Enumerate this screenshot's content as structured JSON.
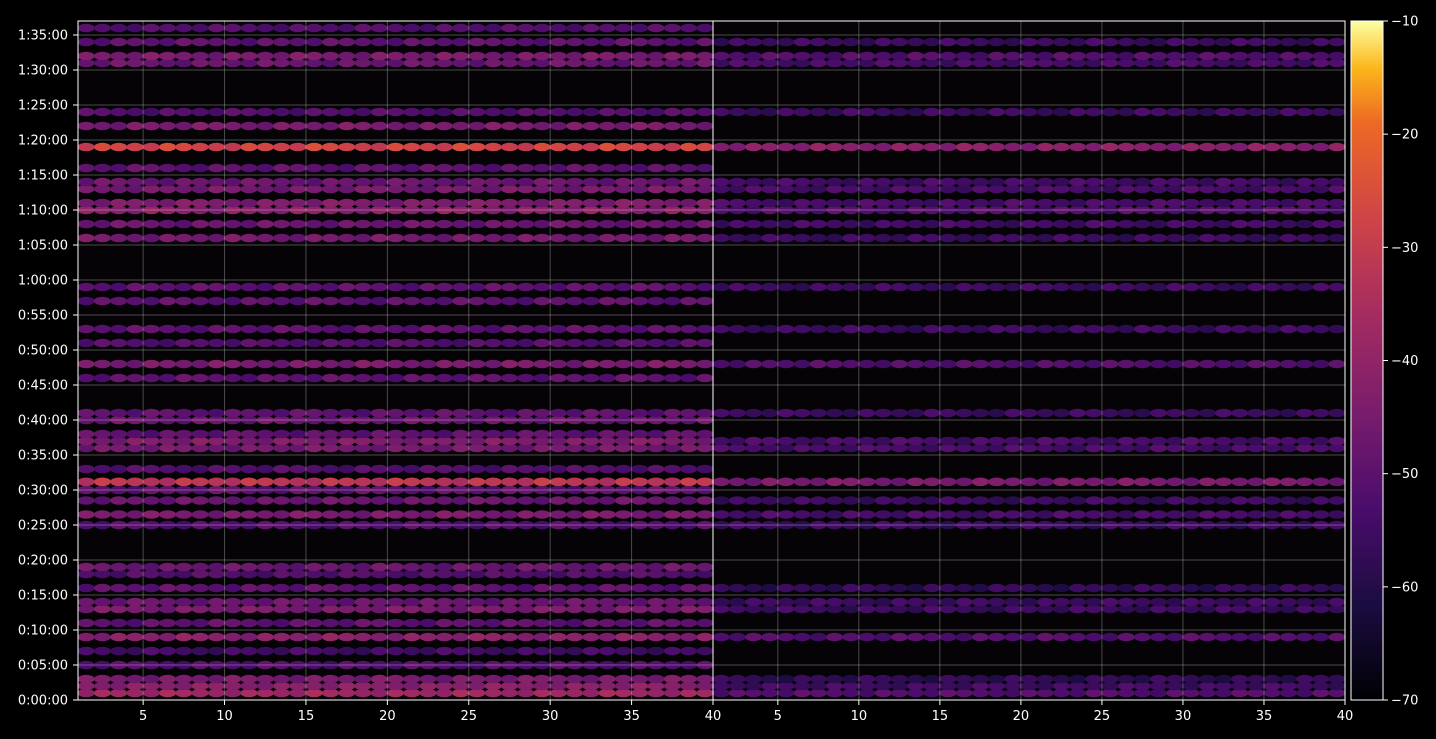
{
  "chart_data": [
    {
      "type": "heatmap",
      "panel": "left",
      "xlabel": "",
      "ylabel": "",
      "xlim": [
        1,
        40
      ],
      "x_ticks": [
        5,
        10,
        15,
        20,
        25,
        30,
        35,
        40
      ],
      "ylim_seconds": [
        0,
        5820
      ],
      "y_ticks": [
        "0:00:00",
        "0:05:00",
        "0:10:00",
        "0:15:00",
        "0:20:00",
        "0:25:00",
        "0:30:00",
        "0:35:00",
        "0:40:00",
        "0:45:00",
        "0:50:00",
        "0:55:00",
        "1:00:00",
        "1:05:00",
        "1:10:00",
        "1:15:00",
        "1:20:00",
        "1:25:00",
        "1:30:00",
        "1:35:00"
      ],
      "grid": true,
      "colormap": "inferno",
      "band_levels_note": "approximate band intensities (value, dB) at given time (seconds)",
      "bands": [
        {
          "t": 60,
          "v": -38
        },
        {
          "t": 120,
          "v": -42
        },
        {
          "t": 180,
          "v": -45
        },
        {
          "t": 300,
          "v": -52
        },
        {
          "t": 420,
          "v": -55
        },
        {
          "t": 540,
          "v": -42
        },
        {
          "t": 660,
          "v": -50
        },
        {
          "t": 780,
          "v": -45
        },
        {
          "t": 840,
          "v": -48
        },
        {
          "t": 960,
          "v": -50
        },
        {
          "t": 1080,
          "v": -52
        },
        {
          "t": 1140,
          "v": -48
        },
        {
          "t": 1500,
          "v": -52
        },
        {
          "t": 1590,
          "v": -45
        },
        {
          "t": 1710,
          "v": -48
        },
        {
          "t": 1800,
          "v": -50
        },
        {
          "t": 1870,
          "v": -32
        },
        {
          "t": 1980,
          "v": -52
        },
        {
          "t": 2160,
          "v": -46
        },
        {
          "t": 2220,
          "v": -44
        },
        {
          "t": 2280,
          "v": -50
        },
        {
          "t": 2400,
          "v": -48
        },
        {
          "t": 2460,
          "v": -50
        },
        {
          "t": 2760,
          "v": -50
        },
        {
          "t": 2880,
          "v": -45
        },
        {
          "t": 3060,
          "v": -52
        },
        {
          "t": 3180,
          "v": -50
        },
        {
          "t": 3420,
          "v": -50
        },
        {
          "t": 3540,
          "v": -50
        },
        {
          "t": 3960,
          "v": -46
        },
        {
          "t": 4080,
          "v": -48
        },
        {
          "t": 4200,
          "v": -42
        },
        {
          "t": 4260,
          "v": -44
        },
        {
          "t": 4380,
          "v": -46
        },
        {
          "t": 4440,
          "v": -48
        },
        {
          "t": 4560,
          "v": -50
        },
        {
          "t": 4740,
          "v": -28
        },
        {
          "t": 4920,
          "v": -45
        },
        {
          "t": 5040,
          "v": -52
        },
        {
          "t": 5460,
          "v": -48
        },
        {
          "t": 5520,
          "v": -45
        },
        {
          "t": 5640,
          "v": -50
        },
        {
          "t": 5760,
          "v": -52
        }
      ]
    },
    {
      "type": "heatmap",
      "panel": "right",
      "xlabel": "",
      "ylabel": "",
      "xlim": [
        1,
        40
      ],
      "x_ticks": [
        5,
        10,
        15,
        20,
        25,
        30,
        35,
        40
      ],
      "ylim_seconds": [
        0,
        5820
      ],
      "grid": true,
      "colormap": "inferno",
      "colorbar": {
        "ticks": [
          "−10",
          "−20",
          "−30",
          "−40",
          "−50",
          "−60",
          "−70"
        ],
        "range": [
          -70,
          -10
        ]
      },
      "bands": [
        {
          "t": 60,
          "v": -52
        },
        {
          "t": 120,
          "v": -55
        },
        {
          "t": 180,
          "v": -58
        },
        {
          "t": 540,
          "v": -52
        },
        {
          "t": 780,
          "v": -56
        },
        {
          "t": 840,
          "v": -56
        },
        {
          "t": 960,
          "v": -58
        },
        {
          "t": 1500,
          "v": -56
        },
        {
          "t": 1590,
          "v": -54
        },
        {
          "t": 1710,
          "v": -56
        },
        {
          "t": 1870,
          "v": -45
        },
        {
          "t": 2160,
          "v": -54
        },
        {
          "t": 2220,
          "v": -54
        },
        {
          "t": 2460,
          "v": -56
        },
        {
          "t": 2880,
          "v": -52
        },
        {
          "t": 3180,
          "v": -56
        },
        {
          "t": 3540,
          "v": -56
        },
        {
          "t": 3960,
          "v": -56
        },
        {
          "t": 4080,
          "v": -55
        },
        {
          "t": 4200,
          "v": -52
        },
        {
          "t": 4260,
          "v": -54
        },
        {
          "t": 4380,
          "v": -54
        },
        {
          "t": 4440,
          "v": -55
        },
        {
          "t": 4740,
          "v": -42
        },
        {
          "t": 5040,
          "v": -56
        },
        {
          "t": 5460,
          "v": -54
        },
        {
          "t": 5520,
          "v": -52
        },
        {
          "t": 5640,
          "v": -56
        }
      ]
    }
  ]
}
